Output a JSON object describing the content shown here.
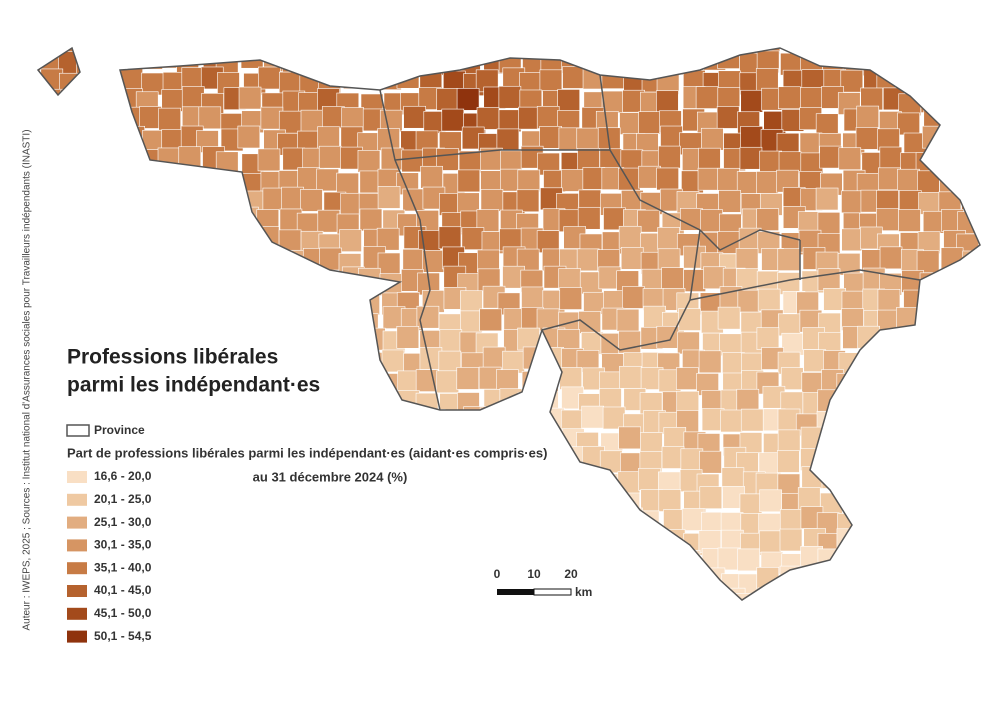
{
  "title": [
    "Professions libérales",
    "parmi les indépendant·es"
  ],
  "province_label": "Province",
  "legend": {
    "title": "Part de professions libérales parmi les indépendant·es (aidant·es compris·es)",
    "subtitle": "au 31 décembre 2024 (%)",
    "classes": [
      {
        "label": "16,6 - 20,0",
        "color": "#f9dfc4"
      },
      {
        "label": "20,1 - 25,0",
        "color": "#efc9a2"
      },
      {
        "label": "25,1 - 30,0",
        "color": "#e2ad80"
      },
      {
        "label": "30,1 - 35,0",
        "color": "#d69563"
      },
      {
        "label": "35,1 - 40,0",
        "color": "#c77b45"
      },
      {
        "label": "40,1 - 45,0",
        "color": "#b5622e"
      },
      {
        "label": "45,1 - 50,0",
        "color": "#a34a1b"
      },
      {
        "label": "50,1 - 54,5",
        "color": "#8f330d"
      }
    ]
  },
  "scale_bar": {
    "labels": [
      "0",
      "10",
      "20"
    ],
    "unit": "km"
  },
  "source": "Auteur : IWEPS, 2025 ; Sources : Institut national d'Assurances sociales pour Travailleurs indépendants (INASTI)"
}
